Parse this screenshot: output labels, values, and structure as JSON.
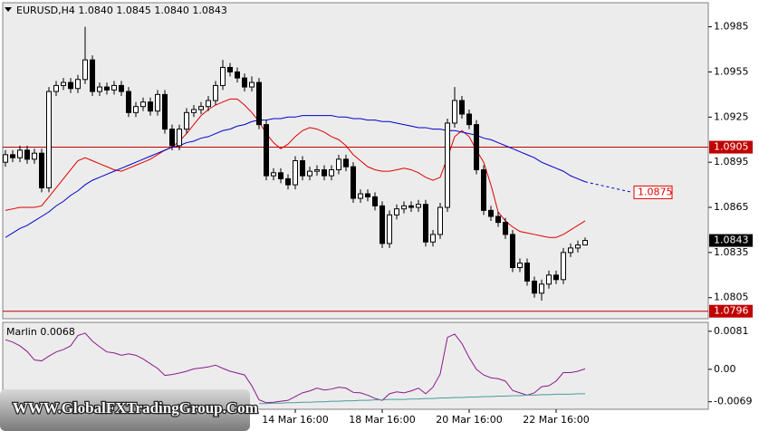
{
  "chart_data": [
    {
      "type": "candlestick",
      "title": "EURUSD,H4  1.0840 1.0845 1.0840 1.0843",
      "categories": [
        null,
        null,
        null,
        null,
        null,
        null,
        null,
        null,
        null,
        null,
        null,
        null,
        null,
        null,
        null,
        null,
        null,
        null,
        null,
        null,
        null,
        null,
        null,
        null,
        null,
        null,
        null,
        null,
        null,
        null,
        null,
        null,
        null,
        null,
        null,
        null,
        null,
        null,
        null,
        null,
        "14 Mar 16:00",
        null,
        null,
        null,
        null,
        null,
        null,
        null,
        null,
        null,
        null,
        null,
        "18 Mar 16:00",
        null,
        null,
        null,
        null,
        null,
        null,
        null,
        null,
        null,
        null,
        null,
        "20 Mar 16:00",
        null,
        null,
        null,
        null,
        null,
        null,
        null,
        null,
        null,
        null,
        null,
        "22 Mar 16:00",
        null,
        null,
        null,
        null
      ],
      "open": [
        1.0895,
        1.09,
        1.0898,
        1.0903,
        1.0897,
        1.0901,
        1.0878,
        1.0942,
        1.0946,
        1.0948,
        1.0944,
        1.095,
        1.0963,
        1.0942,
        1.0945,
        1.0943,
        1.0946,
        1.0942,
        1.0928,
        1.0932,
        1.0935,
        1.0929,
        1.094,
        1.0917,
        1.0906,
        1.0917,
        1.0928,
        1.093,
        1.0932,
        1.0936,
        1.0946,
        1.0958,
        1.0955,
        1.0951,
        1.0945,
        1.0948,
        1.092,
        1.0886,
        1.0888,
        1.0884,
        1.088,
        1.0896,
        1.0886,
        1.0889,
        1.089,
        1.0886,
        1.089,
        1.0897,
        1.0892,
        1.0871,
        1.0874,
        1.0872,
        1.0866,
        1.0841,
        1.086,
        1.0864,
        1.0866,
        1.0865,
        1.0867,
        1.0842,
        1.0847,
        1.0865,
        1.0921,
        1.0936,
        1.0927,
        1.092,
        1.089,
        1.0863,
        1.0859,
        1.0855,
        1.0847,
        1.0825,
        1.0828,
        1.0816,
        1.0808,
        1.0814,
        1.082,
        1.0817,
        1.0835,
        1.0838,
        1.084
      ],
      "high": [
        1.0903,
        1.0903,
        1.0906,
        1.0906,
        1.0904,
        1.0904,
        1.0945,
        1.0949,
        1.0951,
        1.0951,
        1.0953,
        1.0985,
        1.0966,
        1.0948,
        1.0948,
        1.0949,
        1.0949,
        1.0945,
        1.0935,
        1.0938,
        1.0938,
        1.0943,
        1.0943,
        1.092,
        1.092,
        1.0931,
        1.0933,
        1.0935,
        1.0939,
        1.0949,
        1.0963,
        1.0961,
        1.0958,
        1.0954,
        1.0952,
        1.0951,
        1.0923,
        1.0891,
        1.0891,
        1.0887,
        1.0899,
        1.0899,
        1.0892,
        1.0893,
        1.0893,
        1.0893,
        1.09,
        1.09,
        1.0895,
        1.0877,
        1.0877,
        1.0875,
        1.0869,
        1.0863,
        1.0867,
        1.0869,
        1.0869,
        1.087,
        1.087,
        1.085,
        1.0868,
        1.0924,
        1.0945,
        1.0939,
        1.093,
        1.0923,
        1.0893,
        1.0866,
        1.0862,
        1.0858,
        1.085,
        1.0831,
        1.0831,
        1.0819,
        1.0817,
        1.0823,
        1.0823,
        1.0838,
        1.0841,
        1.0843,
        1.0845
      ],
      "low": [
        1.0892,
        1.0895,
        1.0895,
        1.0894,
        1.0894,
        1.0875,
        1.0875,
        1.0939,
        1.0943,
        1.0941,
        1.0941,
        1.0947,
        1.0939,
        1.0939,
        1.094,
        1.094,
        1.0939,
        1.0925,
        1.0925,
        1.0929,
        1.0926,
        1.0926,
        1.0914,
        1.0903,
        1.0903,
        1.0914,
        1.0925,
        1.0927,
        1.0929,
        1.0933,
        1.0943,
        1.0952,
        1.0948,
        1.0942,
        1.0942,
        1.0917,
        1.0883,
        1.0883,
        1.0881,
        1.0877,
        1.0877,
        1.0883,
        1.0883,
        1.0886,
        1.0883,
        1.0883,
        1.0887,
        1.0889,
        1.0868,
        1.0868,
        1.0869,
        1.0863,
        1.0838,
        1.0838,
        1.0857,
        1.0861,
        1.0862,
        1.0862,
        1.0839,
        1.0839,
        1.0844,
        1.0862,
        1.0918,
        1.0924,
        1.0917,
        1.0887,
        1.086,
        1.0856,
        1.0852,
        1.0844,
        1.0822,
        1.0822,
        1.0813,
        1.0805,
        1.0803,
        1.0811,
        1.0814,
        1.0814,
        1.0832,
        1.0835,
        1.084
      ],
      "close": [
        1.09,
        1.0898,
        1.0903,
        1.0897,
        1.0901,
        1.0878,
        1.0942,
        1.0946,
        1.0948,
        1.0944,
        1.095,
        1.0963,
        1.0942,
        1.0945,
        1.0943,
        1.0946,
        1.0942,
        1.0928,
        1.0932,
        1.0935,
        1.0929,
        1.094,
        1.0917,
        1.0906,
        1.0917,
        1.0928,
        1.093,
        1.0932,
        1.0936,
        1.0946,
        1.0958,
        1.0955,
        1.0951,
        1.0945,
        1.0948,
        1.092,
        1.0886,
        1.0888,
        1.0884,
        1.088,
        1.0896,
        1.0886,
        1.0889,
        1.089,
        1.0886,
        1.089,
        1.0897,
        1.0892,
        1.0871,
        1.0874,
        1.0872,
        1.0866,
        1.0841,
        1.086,
        1.0864,
        1.0866,
        1.0865,
        1.0867,
        1.0842,
        1.0847,
        1.0865,
        1.0921,
        1.0936,
        1.0927,
        1.092,
        1.089,
        1.0863,
        1.0859,
        1.0855,
        1.0847,
        1.0825,
        1.0828,
        1.0816,
        1.0808,
        1.0814,
        1.082,
        1.0817,
        1.0835,
        1.0838,
        1.084,
        1.0843
      ],
      "overlays": [
        {
          "color": "#e00000",
          "values": [
            1.0863,
            1.0864,
            1.0865,
            1.0865,
            1.0865,
            1.0866,
            1.0872,
            1.0878,
            1.0884,
            1.089,
            1.0896,
            1.0898,
            1.0896,
            1.0894,
            1.0892,
            1.089,
            1.0889,
            1.0891,
            1.0893,
            1.0895,
            1.0897,
            1.09,
            1.0903,
            1.0905,
            1.0909,
            1.0914,
            1.092,
            1.0926,
            1.093,
            1.0933,
            1.0935,
            1.0937,
            1.0937,
            1.0933,
            1.0928,
            1.0922,
            1.0914,
            1.0908,
            1.0904,
            1.0907,
            1.0912,
            1.0916,
            1.0918,
            1.0917,
            1.0915,
            1.0912,
            1.091,
            1.0906,
            1.09,
            1.0896,
            1.0892,
            1.089,
            1.0889,
            1.0889,
            1.089,
            1.0891,
            1.089,
            1.0888,
            1.0885,
            1.0883,
            1.0885,
            1.0898,
            1.0912,
            1.0916,
            1.0912,
            1.0903,
            1.0895,
            1.088,
            1.0862,
            1.0856,
            1.0852,
            1.0849,
            1.0848,
            1.0847,
            1.0846,
            1.0845,
            1.0845,
            1.0847,
            1.085,
            1.0853,
            1.0856
          ]
        },
        {
          "color": "#0000c8",
          "values": [
            1.0845,
            1.0848,
            1.0851,
            1.0853,
            1.0856,
            1.0859,
            1.0862,
            1.0866,
            1.0869,
            1.0873,
            1.0876,
            1.088,
            1.0883,
            1.0885,
            1.0887,
            1.0889,
            1.0891,
            1.0893,
            1.0895,
            1.0897,
            1.0899,
            1.0901,
            1.0903,
            1.0905,
            1.0906,
            1.0908,
            1.0909,
            1.0911,
            1.0912,
            1.0914,
            1.0916,
            1.0917,
            1.0919,
            1.092,
            1.0922,
            1.0923,
            1.0923,
            1.0924,
            1.0924,
            1.0925,
            1.0925,
            1.0926,
            1.0926,
            1.0926,
            1.0926,
            1.0926,
            1.0925,
            1.0925,
            1.0924,
            1.0924,
            1.0923,
            1.0923,
            1.0922,
            1.0922,
            1.0921,
            1.092,
            1.0919,
            1.0918,
            1.0918,
            1.0917,
            1.0917,
            1.0916,
            1.0916,
            1.0915,
            1.0914,
            1.0913,
            1.0911,
            1.091,
            1.0908,
            1.0906,
            1.0904,
            1.0902,
            1.09,
            1.0898,
            1.0895,
            1.0893,
            1.0891,
            1.0889,
            1.0886,
            1.0884,
            1.0882
          ]
        }
      ],
      "hlines": [
        {
          "value": 1.0905,
          "color": "#c00000"
        },
        {
          "value": 1.0796,
          "color": "#c00000"
        }
      ],
      "last_price": 1.0843,
      "annotation": {
        "value": 1.0875,
        "color": "#e00000"
      },
      "ylim": [
        1.0791,
        1.1001
      ],
      "yticks": [
        1.0985,
        1.0955,
        1.0925,
        1.0895,
        1.0865,
        1.0835,
        1.0805
      ],
      "watermark": "WWW.GlobalFXTradingGroup.Com"
    },
    {
      "type": "line",
      "title": "Marlin 0.0068",
      "series": [
        {
          "color": "#8b1a8b",
          "values": [
            0.0063,
            0.0058,
            0.005,
            0.0038,
            0.002,
            0.0018,
            0.0028,
            0.0037,
            0.0042,
            0.005,
            0.0072,
            0.0077,
            0.006,
            0.0048,
            0.0037,
            0.0035,
            0.003,
            0.0033,
            0.003,
            0.0022,
            0.0012,
            0.0002,
            -0.0013,
            -0.0011,
            -0.0008,
            -0.0004,
            0.0001,
            0.0003,
            0.0005,
            0.0009,
            0.0002,
            -0.0004,
            -0.0008,
            -0.0012,
            -0.0035,
            -0.0065,
            -0.0071,
            -0.007,
            -0.0068,
            -0.0066,
            -0.0058,
            -0.005,
            -0.0046,
            -0.004,
            -0.0044,
            -0.0042,
            -0.0038,
            -0.004,
            -0.0049,
            -0.005,
            -0.0055,
            -0.0062,
            -0.0066,
            -0.0052,
            -0.0048,
            -0.005,
            -0.0046,
            -0.004,
            -0.0052,
            -0.0038,
            -0.001,
            0.0068,
            0.0075,
            0.0055,
            0.0025,
            0.0,
            -0.0012,
            -0.0018,
            -0.002,
            -0.0025,
            -0.0045,
            -0.005,
            -0.0055,
            -0.005,
            -0.0037,
            -0.0035,
            -0.0025,
            -0.0007,
            -0.0007,
            -0.0004,
            0.0001
          ]
        },
        {
          "color": "#4a9c9c",
          "values": [
            null,
            null,
            null,
            null,
            null,
            null,
            null,
            null,
            null,
            null,
            null,
            null,
            null,
            null,
            null,
            null,
            null,
            null,
            null,
            null,
            null,
            null,
            null,
            null,
            null,
            null,
            null,
            null,
            null,
            null,
            null,
            null,
            null,
            null,
            null,
            -0.0073,
            -0.0073,
            -0.0072,
            -0.0072,
            -0.0071,
            -0.0071,
            -0.007,
            -0.007,
            -0.0069,
            -0.0069,
            -0.0068,
            -0.0068,
            -0.0067,
            -0.0067,
            -0.0066,
            -0.0066,
            -0.0065,
            -0.0065,
            -0.0064,
            -0.0064,
            -0.0064,
            -0.0063,
            -0.0063,
            -0.0062,
            -0.0062,
            -0.0061,
            -0.0061,
            -0.006,
            -0.006,
            -0.0059,
            -0.0059,
            -0.0058,
            -0.0058,
            -0.0057,
            -0.0057,
            -0.0056,
            -0.0056,
            -0.0055,
            -0.0055,
            -0.0054,
            -0.0054,
            -0.0053,
            -0.0053,
            -0.0053,
            -0.0052,
            -0.0052
          ]
        }
      ],
      "ylim": [
        -0.0085,
        0.01
      ],
      "yticks": [
        0.0081,
        {
          "value": 0,
          "label": "0.00"
        },
        -0.0069
      ]
    }
  ]
}
